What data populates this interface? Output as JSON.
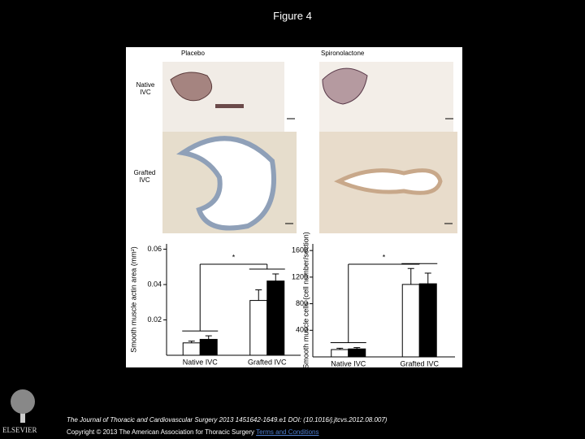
{
  "header": {
    "title": "Figure 4"
  },
  "figure": {
    "columns": [
      "Placebo",
      "Spironolactone"
    ],
    "rows": [
      "Native IVC",
      "Grafted IVC"
    ]
  },
  "chart_data": [
    {
      "type": "bar",
      "ylabel": "Smooth muscle actin area (mm²)",
      "categories": [
        "Native IVC",
        "Grafted IVC"
      ],
      "series": [
        {
          "color": "#ffffff",
          "values": [
            0.007,
            0.031
          ],
          "errors": [
            0.001,
            0.006
          ]
        },
        {
          "color": "#000000",
          "values": [
            0.009,
            0.042
          ],
          "errors": [
            0.002,
            0.004
          ]
        }
      ],
      "ylim": [
        0,
        0.063
      ],
      "yticks": [
        0.02,
        0.04,
        0.06
      ],
      "annotation": "*"
    },
    {
      "type": "bar",
      "ylabel": "Smooth muscle cells (cell number/section)",
      "categories": [
        "Native IVC",
        "Grafted IVC"
      ],
      "series": [
        {
          "color": "#ffffff",
          "values": [
            110,
            1090
          ],
          "errors": [
            20,
            240
          ]
        },
        {
          "color": "#000000",
          "values": [
            120,
            1100
          ],
          "errors": [
            20,
            160
          ]
        }
      ],
      "ylim": [
        0,
        1700
      ],
      "yticks": [
        400,
        800,
        1200,
        1600
      ],
      "annotation": "*"
    }
  ],
  "footer": {
    "citation": "The Journal of Thoracic and Cardiovascular Surgery 2013 1451642-1649.e1 DOI: (10.1016/j.jtcvs.2012.08.007)",
    "copyright": "Copyright © 2013 The American Association for Thoracic Surgery",
    "link": "Terms and Conditions"
  },
  "logo": {
    "text": "ELSEVIER"
  }
}
